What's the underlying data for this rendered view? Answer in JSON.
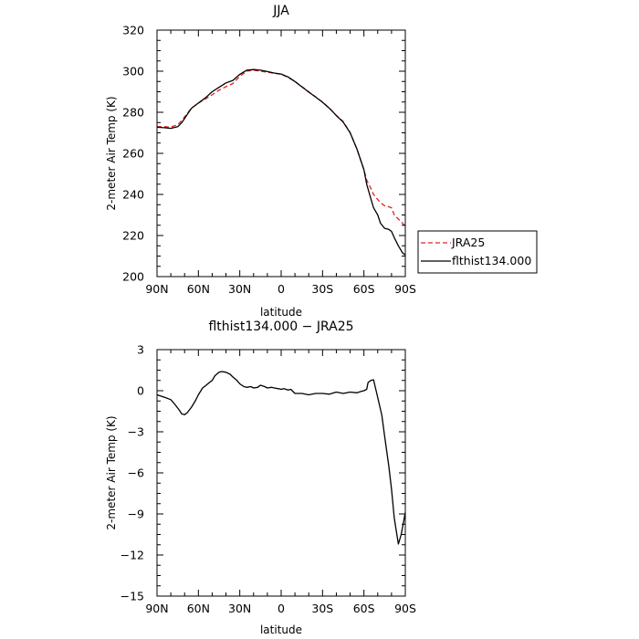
{
  "chart_data": [
    {
      "type": "line",
      "title": "JJA",
      "xlabel": "latitude",
      "ylabel": "2-meter Air Temp (K)",
      "xlim": [
        90,
        -90
      ],
      "ylim": [
        200,
        320
      ],
      "x_ticks": [
        90,
        60,
        30,
        0,
        -30,
        -60,
        -90
      ],
      "x_tick_labels": [
        "90N",
        "60N",
        "30N",
        "0",
        "30S",
        "60S",
        "90S"
      ],
      "y_ticks": [
        200,
        220,
        240,
        260,
        280,
        300,
        320
      ],
      "y_tick_labels": [
        "200",
        "220",
        "240",
        "260",
        "280",
        "300",
        "320"
      ],
      "grid": false,
      "legend_position": "right",
      "series": [
        {
          "name": "JRA25",
          "color": "#e02020",
          "dash": "dashed",
          "x": [
            90,
            85,
            80,
            75,
            72,
            68,
            65,
            60,
            55,
            50,
            45,
            40,
            35,
            30,
            25,
            20,
            15,
            10,
            5,
            0,
            -5,
            -10,
            -15,
            -20,
            -25,
            -30,
            -35,
            -40,
            -45,
            -50,
            -55,
            -60,
            -62,
            -65,
            -67,
            -70,
            -72,
            -75,
            -78,
            -80,
            -82,
            -85,
            -88,
            -90
          ],
          "y": [
            273.0,
            273.0,
            272.8,
            274.0,
            276.0,
            279.5,
            282.0,
            284.5,
            286.5,
            288.5,
            290.8,
            292.5,
            294.0,
            297.5,
            300.0,
            300.5,
            300.0,
            299.5,
            299.0,
            298.5,
            297.0,
            295.0,
            292.5,
            290.0,
            287.5,
            285.0,
            282.0,
            278.5,
            275.5,
            270.0,
            262.0,
            252.0,
            247.0,
            243.0,
            240.0,
            237.5,
            236.0,
            234.5,
            234.0,
            233.5,
            230.0,
            228.0,
            226.0,
            224.5
          ]
        },
        {
          "name": "flthist134.000",
          "color": "#000000",
          "dash": "solid",
          "x": [
            90,
            85,
            80,
            75,
            72,
            68,
            65,
            60,
            55,
            50,
            45,
            40,
            35,
            30,
            25,
            20,
            15,
            10,
            5,
            0,
            -5,
            -10,
            -15,
            -20,
            -25,
            -30,
            -35,
            -40,
            -45,
            -50,
            -55,
            -60,
            -62,
            -65,
            -67,
            -70,
            -72,
            -75,
            -78,
            -80,
            -82,
            -85,
            -88,
            -90
          ],
          "y": [
            272.7,
            272.5,
            272.2,
            273.0,
            275.0,
            279.0,
            282.0,
            284.5,
            287.0,
            290.0,
            292.2,
            294.3,
            295.5,
            298.5,
            300.5,
            300.8,
            300.5,
            299.8,
            299.1,
            298.6,
            297.2,
            295.0,
            292.4,
            289.8,
            287.4,
            284.9,
            281.9,
            278.4,
            275.2,
            270.0,
            262.0,
            252.0,
            245.0,
            238.0,
            233.5,
            230.0,
            226.0,
            223.5,
            223.0,
            222.0,
            219.0,
            215.0,
            211.5,
            210.5
          ]
        }
      ]
    },
    {
      "type": "line",
      "title": "flthist134.000 − JRA25",
      "xlabel": "latitude",
      "ylabel": "2-meter Air Temp (K)",
      "xlim": [
        90,
        -90
      ],
      "ylim": [
        -15,
        3
      ],
      "x_ticks": [
        90,
        60,
        30,
        0,
        -30,
        -60,
        -90
      ],
      "x_tick_labels": [
        "90N",
        "60N",
        "30N",
        "0",
        "30S",
        "60S",
        "90S"
      ],
      "y_ticks": [
        -15,
        -12,
        -9,
        -6,
        -3,
        0,
        3
      ],
      "y_tick_labels": [
        "−15",
        "−12",
        "−9",
        "−6",
        "−3",
        "0",
        "3"
      ],
      "grid": false,
      "series": [
        {
          "color": "#000000",
          "dash": "solid",
          "x": [
            90,
            87,
            84,
            80,
            77,
            74,
            72,
            70,
            68,
            65,
            62,
            60,
            57,
            55,
            52,
            50,
            48,
            45,
            43,
            40,
            37,
            35,
            32,
            30,
            27,
            25,
            22,
            20,
            17,
            15,
            12,
            10,
            7,
            5,
            2,
            0,
            -2,
            -5,
            -7,
            -10,
            -15,
            -20,
            -25,
            -30,
            -35,
            -40,
            -45,
            -50,
            -55,
            -58,
            -60,
            -62,
            -63,
            -65,
            -67,
            -70,
            -73,
            -75,
            -78,
            -80,
            -82,
            -85,
            -87,
            -90
          ],
          "y": [
            -0.3,
            -0.4,
            -0.5,
            -0.65,
            -1.0,
            -1.4,
            -1.7,
            -1.75,
            -1.6,
            -1.2,
            -0.7,
            -0.3,
            0.2,
            0.35,
            0.6,
            0.75,
            1.1,
            1.35,
            1.4,
            1.35,
            1.2,
            1.0,
            0.75,
            0.5,
            0.3,
            0.25,
            0.3,
            0.2,
            0.25,
            0.4,
            0.3,
            0.2,
            0.25,
            0.2,
            0.15,
            0.1,
            0.15,
            0.05,
            0.1,
            -0.2,
            -0.2,
            -0.3,
            -0.2,
            -0.2,
            -0.25,
            -0.1,
            -0.2,
            -0.1,
            -0.15,
            -0.05,
            0.0,
            0.1,
            0.6,
            0.75,
            0.8,
            -0.5,
            -1.8,
            -3.3,
            -5.5,
            -7.2,
            -9.3,
            -11.2,
            -10.5,
            -8.9
          ]
        }
      ]
    }
  ]
}
